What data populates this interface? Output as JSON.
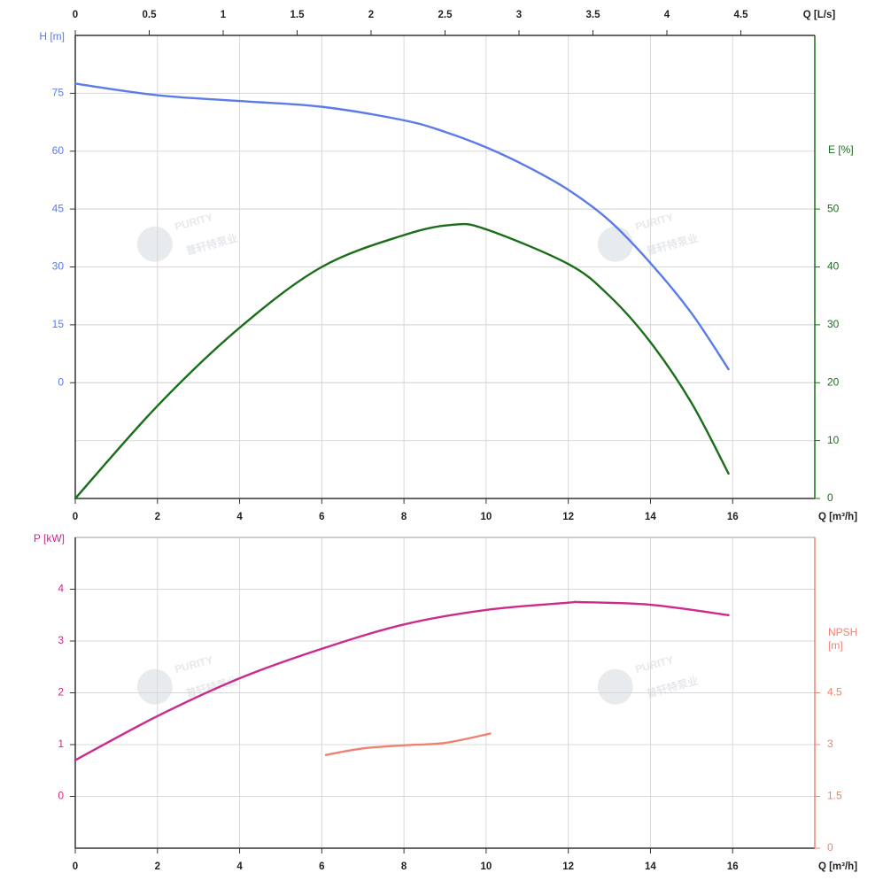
{
  "chart_data": [
    {
      "type": "line",
      "xlabel": "Q [m³/h]",
      "xlim": [
        0,
        18
      ],
      "xticks": [
        0,
        2,
        4,
        6,
        8,
        10,
        12,
        14,
        16
      ],
      "x2label": "Q [L/s]",
      "x2lim": [
        0,
        5
      ],
      "x2ticks": [
        0,
        0.5,
        1,
        1.5,
        2,
        2.5,
        3,
        3.5,
        4,
        4.5
      ],
      "ylabel": "H [m]",
      "ylim": [
        -30,
        90
      ],
      "yticks": [
        0,
        15,
        30,
        45,
        60,
        75
      ],
      "ycolor": "#5b7be8",
      "y2label": "E [%]",
      "y2lim": [
        0,
        80
      ],
      "y2ticks": [
        0,
        10,
        20,
        30,
        40,
        50
      ],
      "y2color": "#1a6e1a",
      "grid": true,
      "series": [
        {
          "color": "#5b7be8",
          "x": [
            0,
            2,
            4,
            6,
            8,
            9,
            10,
            11,
            12,
            13,
            14,
            15,
            15.9
          ],
          "values": [
            77.5,
            74.5,
            73,
            71.5,
            68,
            65,
            61,
            56,
            50,
            42,
            31,
            18,
            3.5
          ]
        },
        {
          "color": "#1a6e1a",
          "axis": "y2",
          "x": [
            0,
            2,
            4,
            6,
            8,
            9.2,
            10,
            12,
            13,
            14,
            15,
            15.9
          ],
          "values": [
            0,
            16,
            29.5,
            40,
            45.5,
            47.3,
            46.5,
            40.5,
            35,
            27,
            16.5,
            4.3
          ]
        }
      ]
    },
    {
      "type": "line",
      "xlabel": "Q [m³/h]",
      "xlim": [
        0,
        18
      ],
      "xticks": [
        0,
        2,
        4,
        6,
        8,
        10,
        12,
        14,
        16
      ],
      "ylabel": "P [kW]",
      "ylim": [
        -1,
        5
      ],
      "yticks": [
        0,
        1,
        2,
        3,
        4
      ],
      "ycolor": "#cc2a8c",
      "y2label": "NPSH [m]",
      "y2lim": [
        0,
        9
      ],
      "y2ticks": [
        0,
        1.5,
        3,
        4.5
      ],
      "y2color": "#f08070",
      "grid": true,
      "series": [
        {
          "color": "#cc2a8c",
          "x": [
            0,
            2,
            4,
            6,
            8,
            10,
            12,
            12.3,
            14,
            15.9
          ],
          "values": [
            0.7,
            1.55,
            2.28,
            2.85,
            3.32,
            3.6,
            3.74,
            3.75,
            3.7,
            3.5
          ]
        },
        {
          "color": "#f08070",
          "axis": "y2",
          "x": [
            6.1,
            7,
            8,
            9,
            10.1
          ],
          "values": [
            2.7,
            2.89,
            2.98,
            3.05,
            3.32
          ]
        }
      ]
    }
  ],
  "watermark": {
    "brand": "PURITY",
    "name": "普轩特泵业"
  }
}
